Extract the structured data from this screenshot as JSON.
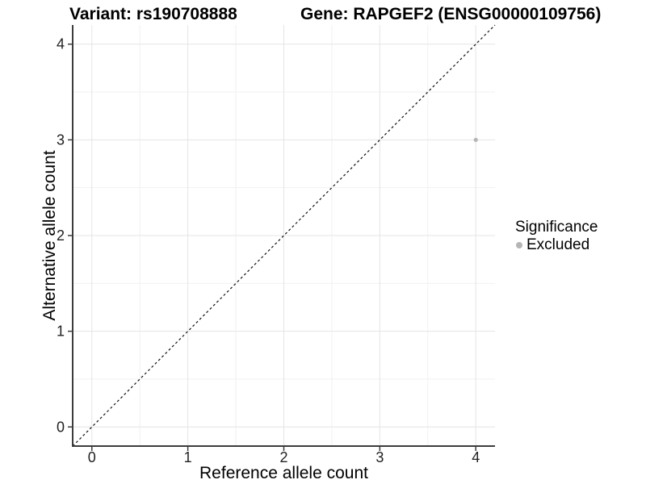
{
  "header": {
    "title_left": "Variant: rs190708888",
    "title_right": "Gene: RAPGEF2 (ENSG00000109756)"
  },
  "legend": {
    "title": "Significance",
    "items": [
      {
        "label": "Excluded",
        "color": "#b5b5b5"
      }
    ]
  },
  "chart_data": {
    "type": "scatter",
    "title": "Variant: rs190708888 / Gene: RAPGEF2 (ENSG00000109756)",
    "xlabel": "Reference allele count",
    "ylabel": "Alternative allele count",
    "xlim": [
      -0.2,
      4.2
    ],
    "ylim": [
      -0.2,
      4.2
    ],
    "x_ticks": [
      0,
      1,
      2,
      3,
      4
    ],
    "y_ticks": [
      0,
      1,
      2,
      3,
      4
    ],
    "x_minor": [
      0.5,
      1.5,
      2.5,
      3.5
    ],
    "y_minor": [
      0.5,
      1.5,
      2.5,
      3.5
    ],
    "grid": true,
    "legend_position": "right",
    "identity_line": {
      "slope": 1,
      "intercept": 0,
      "style": "dashed",
      "color": "#111111"
    },
    "series": [
      {
        "name": "Excluded",
        "color": "#b5b5b5",
        "points": [
          {
            "x": 4,
            "y": 3
          }
        ]
      }
    ],
    "colors": {
      "grid_major": "#e4e4e4",
      "grid_minor": "#f1f1f1",
      "axis_line": "#3c3c3c",
      "tick_mark": "#3c3c3c",
      "tick_label": "#1f1f1f",
      "background": "#ffffff"
    }
  }
}
